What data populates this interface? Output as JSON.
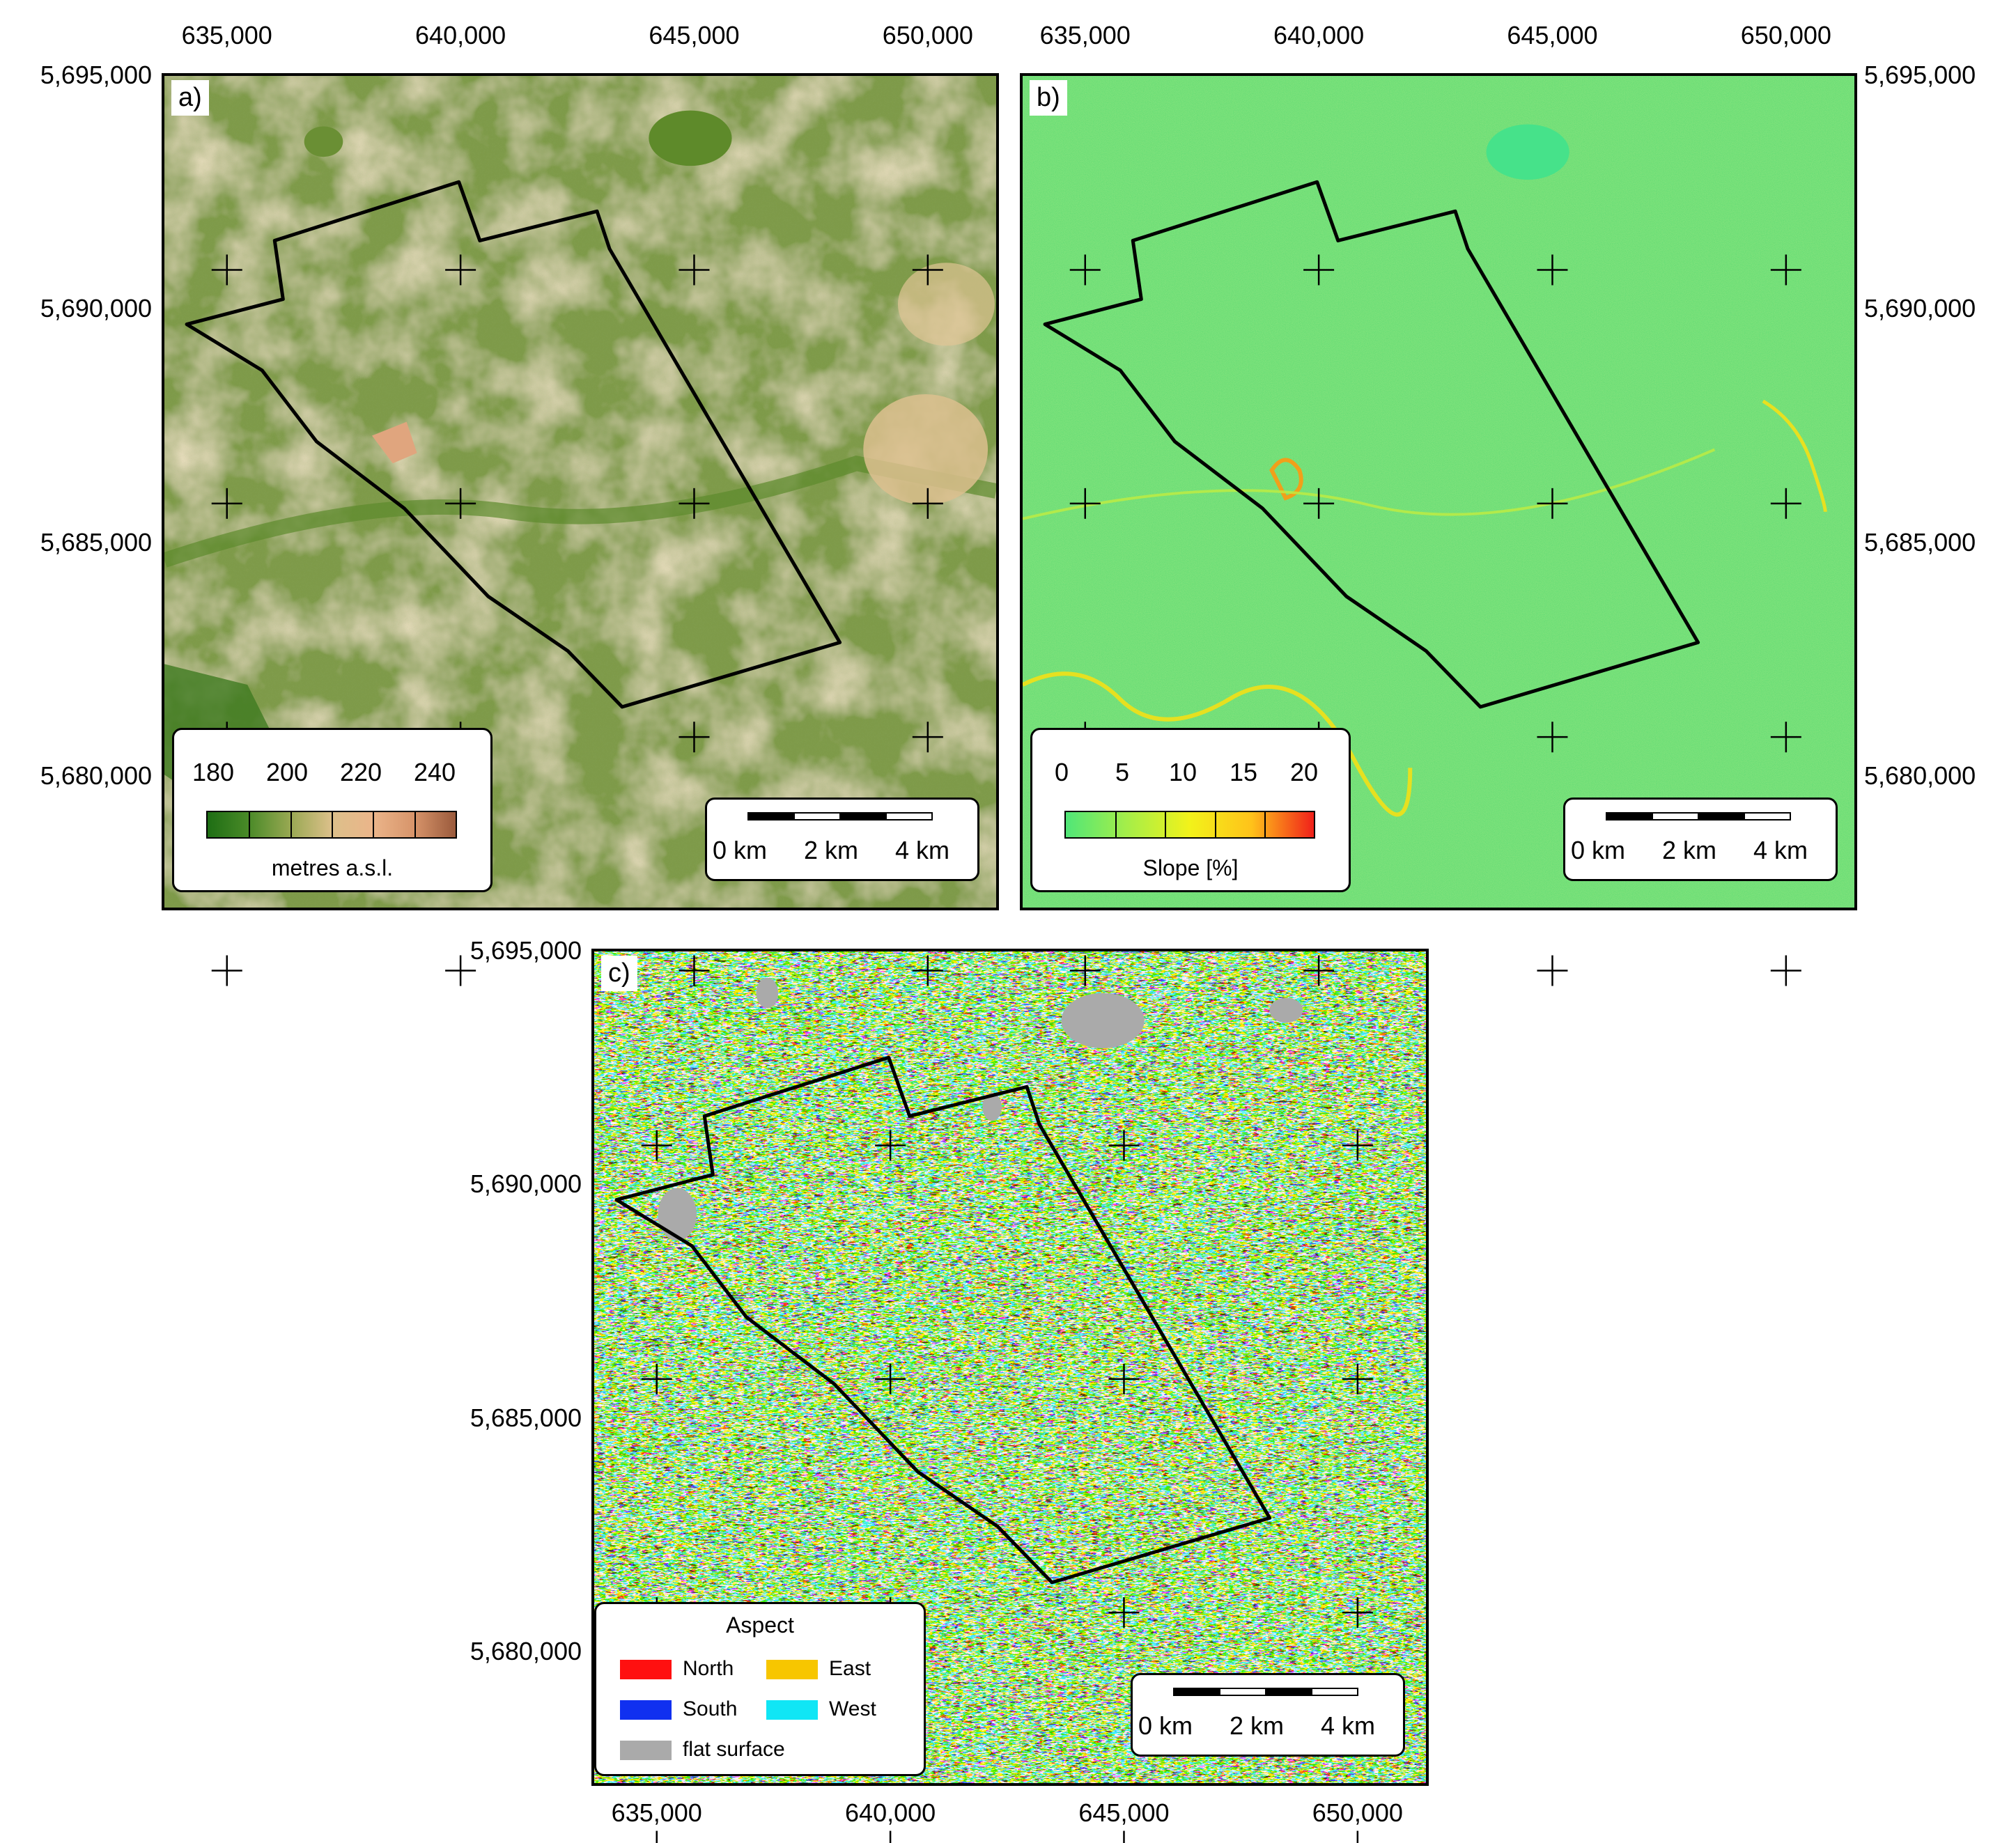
{
  "panels": {
    "a": {
      "label": "a)",
      "legend": {
        "ticks": [
          "180",
          "200",
          "220",
          "240"
        ],
        "title": "metres a.s.l.",
        "colors": [
          "#1e6e14",
          "#4a8a28",
          "#98a852",
          "#dcc08a",
          "#ebb58a",
          "#d7946a",
          "#9a5a3c"
        ]
      }
    },
    "b": {
      "label": "b)",
      "legend": {
        "ticks": [
          "0",
          "5",
          "10",
          "15",
          "20"
        ],
        "title": "Slope [%]",
        "colors": [
          "#50e678",
          "#a6ee48",
          "#f2f21a",
          "#ffc21a",
          "#f0201a"
        ]
      }
    },
    "c": {
      "label": "c)",
      "legend": {
        "title": "Aspect",
        "items": [
          {
            "label": "North",
            "color": "#ff1010"
          },
          {
            "label": "East",
            "color": "#f7c600"
          },
          {
            "label": "South",
            "color": "#1030f0"
          },
          {
            "label": "West",
            "color": "#10e6f5"
          },
          {
            "label": "flat surface",
            "color": "#aaaaaa"
          }
        ]
      }
    }
  },
  "axes": {
    "x_ticks": [
      "635,000",
      "640,000",
      "645,000",
      "650,000"
    ],
    "y_ticks": [
      "5,695,000",
      "5,690,000",
      "5,685,000",
      "5,680,000"
    ]
  },
  "scalebar": {
    "labels": [
      "0 km",
      "2 km",
      "4 km"
    ]
  },
  "colors": {
    "dem_base": "#8fa45a",
    "slope_base": "#5fdb73",
    "outline": "#000000"
  }
}
